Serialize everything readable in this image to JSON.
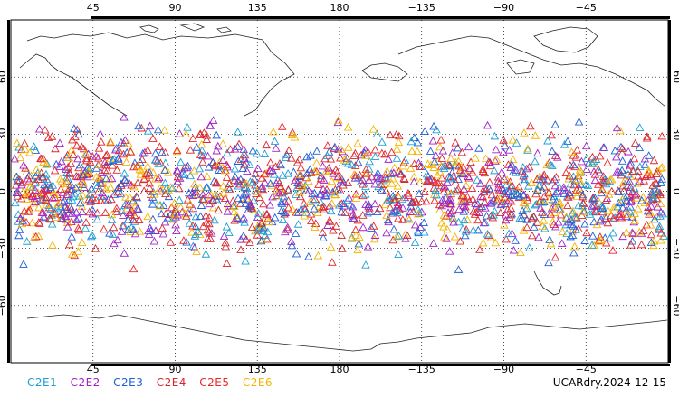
{
  "map": {
    "lon_labels": [
      "45",
      "90",
      "135",
      "180",
      "−135",
      "−90",
      "−45"
    ],
    "lat_labels": [
      "60",
      "30",
      "0",
      "−30",
      "−60"
    ],
    "lat_range": [
      -90,
      90
    ],
    "lon_range": [
      0,
      360
    ],
    "projection": "cylindrical-equidistant",
    "occultation_lat_band": [
      -45,
      45
    ],
    "marker_shape": "triangle"
  },
  "legend": [
    {
      "label": "C2E1",
      "color": "#1e9fd6"
    },
    {
      "label": "C2E2",
      "color": "#a020c8"
    },
    {
      "label": "C2E3",
      "color": "#1e5fd6"
    },
    {
      "label": "C2E4",
      "color": "#d6282c"
    },
    {
      "label": "C2E5",
      "color": "#e8262a"
    },
    {
      "label": "C2E6",
      "color": "#f5b400"
    }
  ],
  "footer": {
    "dataset_label": "UCARdry.2024-12-15"
  }
}
